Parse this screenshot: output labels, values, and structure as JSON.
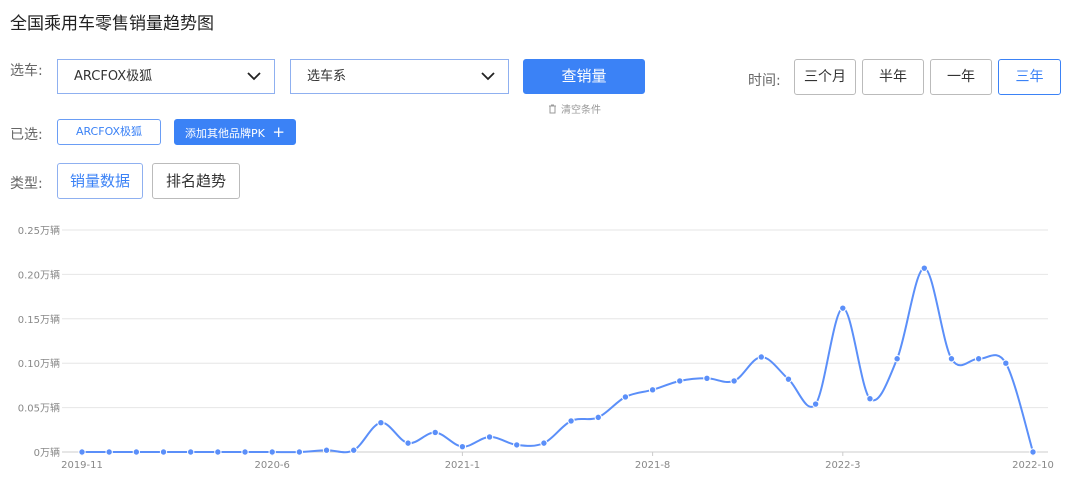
{
  "title": "全国乘用车零售销量趋势图",
  "filters": {
    "car_label": "选车:",
    "brand_value": "ARCFOX极狐",
    "series_placeholder": "选车系",
    "query_button": "查销量",
    "clear_label": "清空条件",
    "time_label": "时间:",
    "time_options": [
      "三个月",
      "半年",
      "一年",
      "三年"
    ],
    "time_selected": "三年",
    "selected_label": "已选:",
    "selected_brand": "ARCFOX极狐",
    "add_brand_button": "添加其他品牌PK",
    "type_label": "类型:",
    "type_options": [
      "销量数据",
      "排名趋势"
    ],
    "type_selected": "销量数据"
  },
  "colors": {
    "accent": "#3b82f6",
    "line": "#5b8ff9"
  },
  "chart_data": {
    "type": "line",
    "title": "",
    "xlabel": "",
    "ylabel": "",
    "ylim": [
      0,
      0.25
    ],
    "grid": true,
    "y_ticks": [
      "0万辆",
      "0.05万辆",
      "0.10万辆",
      "0.15万辆",
      "0.20万辆",
      "0.25万辆"
    ],
    "y_tick_values": [
      0,
      0.05,
      0.1,
      0.15,
      0.2,
      0.25
    ],
    "x_tick_labels": [
      "2019-11",
      "2020-6",
      "2021-1",
      "2021-8",
      "2022-3",
      "2022-10"
    ],
    "x": [
      "2019-11",
      "2019-12",
      "2020-1",
      "2020-2",
      "2020-3",
      "2020-4",
      "2020-5",
      "2020-6",
      "2020-7",
      "2020-8",
      "2020-9",
      "2020-10",
      "2020-11",
      "2020-12",
      "2021-1",
      "2021-2",
      "2021-3",
      "2021-4",
      "2021-5",
      "2021-6",
      "2021-7",
      "2021-8",
      "2021-9",
      "2021-10",
      "2021-11",
      "2021-12",
      "2022-1",
      "2022-2",
      "2022-3",
      "2022-4",
      "2022-5",
      "2022-6",
      "2022-7",
      "2022-8",
      "2022-9",
      "2022-10"
    ],
    "values": [
      0,
      0,
      0,
      0,
      0,
      0,
      0,
      0,
      0,
      0.002,
      0.002,
      0.033,
      0.01,
      0.022,
      0.006,
      0.017,
      0.008,
      0.01,
      0.035,
      0.039,
      0.062,
      0.07,
      0.08,
      0.083,
      0.08,
      0.107,
      0.082,
      0.054,
      0.162,
      0.06,
      0.105,
      0.207,
      0.105,
      0.105,
      0.1,
      0
    ]
  }
}
